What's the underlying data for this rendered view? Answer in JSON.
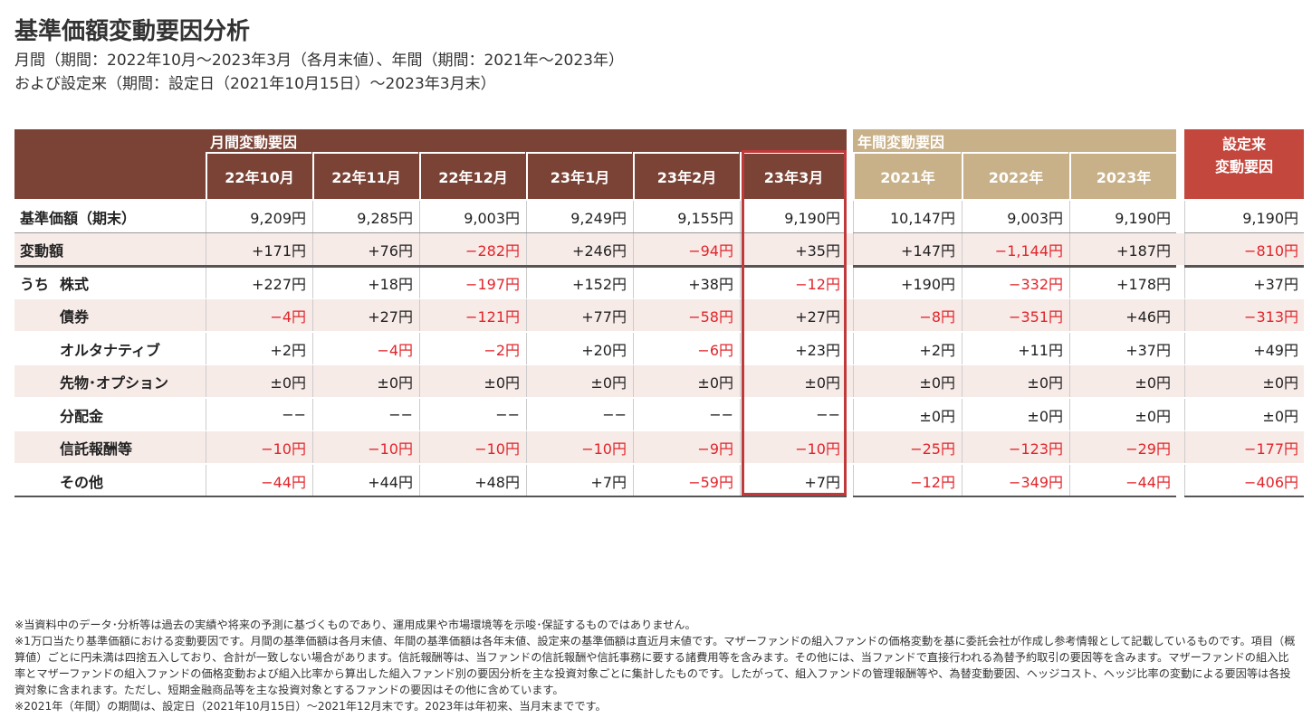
{
  "header": {
    "title": "基準価額変動要因分析",
    "subtitle_lines": [
      "月間（期間：2022年10月～2023年3月（各月末値）、年間（期間：2021年～2023年）",
      "および設定来（期間：設定日（2021年10月15日）～2023年3月末）"
    ]
  },
  "table": {
    "groups": {
      "monthly": "月間変動要因",
      "annual": "年間変動要因",
      "since_inception": [
        "設定来",
        "変動要因"
      ]
    },
    "columns": [
      "22年10月",
      "22年11月",
      "22年12月",
      "23年1月",
      "23年2月",
      "23年3月",
      "2021年",
      "2022年",
      "2023年"
    ],
    "sub_prefix": "うち",
    "rows": [
      {
        "label": "基準価額（期末）",
        "values": [
          "9,209円",
          "9,285円",
          "9,003円",
          "9,249円",
          "9,155円",
          "9,190円",
          "10,147円",
          "9,003円",
          "9,190円",
          "9,190円"
        ]
      },
      {
        "label": "変動額",
        "values": [
          "+171円",
          "+76円",
          "−282円",
          "+246円",
          "−94円",
          "+35円",
          "+147円",
          "−1,144円",
          "+187円",
          "−810円"
        ]
      },
      {
        "label": "株式",
        "values": [
          "+227円",
          "+18円",
          "−197円",
          "+152円",
          "+38円",
          "−12円",
          "+190円",
          "−332円",
          "+178円",
          "+37円"
        ]
      },
      {
        "label": "債券",
        "values": [
          "−4円",
          "+27円",
          "−121円",
          "+77円",
          "−58円",
          "+27円",
          "−8円",
          "−351円",
          "+46円",
          "−313円"
        ]
      },
      {
        "label": "オルタナティブ",
        "values": [
          "+2円",
          "−4円",
          "−2円",
          "+20円",
          "−6円",
          "+23円",
          "+2円",
          "+11円",
          "+37円",
          "+49円"
        ]
      },
      {
        "label": "先物･オプション",
        "values": [
          "±0円",
          "±0円",
          "±0円",
          "±0円",
          "±0円",
          "±0円",
          "±0円",
          "±0円",
          "±0円",
          "±0円"
        ]
      },
      {
        "label": "分配金",
        "values": [
          "−−",
          "−−",
          "−−",
          "−−",
          "−−",
          "−−",
          "±0円",
          "±0円",
          "±0円",
          "±0円"
        ]
      },
      {
        "label": "信託報酬等",
        "values": [
          "−10円",
          "−10円",
          "−10円",
          "−10円",
          "−9円",
          "−10円",
          "−25円",
          "−123円",
          "−29円",
          "−177円"
        ]
      },
      {
        "label": "その他",
        "values": [
          "−44円",
          "+44円",
          "+48円",
          "+7円",
          "−59円",
          "+7円",
          "−12円",
          "−349円",
          "−44円",
          "−406円"
        ]
      }
    ]
  },
  "footnotes": [
    "※当資料中のデータ･分析等は過去の実績や将来の予測に基づくものであり、運用成果や市場環境等を示唆･保証するものではありません。",
    "※1万口当たり基準価額における変動要因です。月間の基準価額は各月末値、年間の基準価額は各年末値、設定来の基準価額は直近月末値です。マザーファンドの組入ファンドの価格変動を基に委託会社が作成し参考情報として記載しているものです。項目（概算値）ごとに円未満は四捨五入しており、合計が一致しない場合があります。信託報酬等は、当ファンドの信託報酬や信託事務に要する諸費用等を含みます。その他には、当ファンドで直接行われる為替予約取引の要因等を含みます。マザーファンドの組入比率とマザーファンドの組入ファンドの価格変動および組入比率から算出した組入ファンド別の要因分析を主な投資対象ごとに集計したものです。したがって、組入ファンドの管理報酬等や、為替変動要因、ヘッジコスト、ヘッジ比率の変動による要因等は各投資対象に含まれます。ただし、短期金融商品等を主な投資対象とするファンドの要因はその他に含めています。",
    "※2021年（年間）の期間は、設定日（2021年10月15日）～2021年12月末です。2023年は年初来、当月末までです。"
  ]
}
